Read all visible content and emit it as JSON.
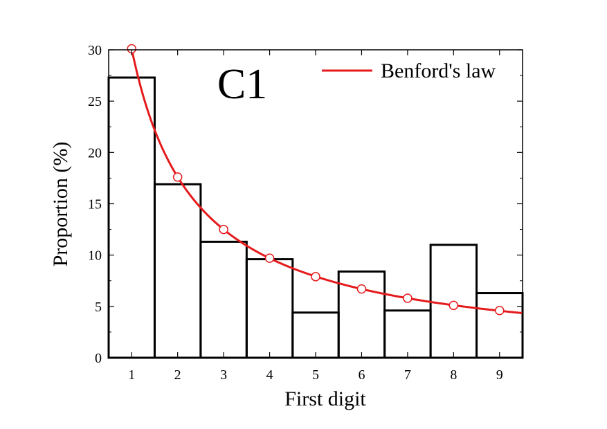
{
  "chart_data": {
    "type": "bar",
    "panel_label": "C1",
    "xlabel": "First digit",
    "ylabel": "Proportion (%)",
    "xlim": [
      0.5,
      9.5
    ],
    "ylim": [
      0,
      30
    ],
    "x_ticks": [
      "1",
      "2",
      "3",
      "4",
      "5",
      "6",
      "7",
      "8",
      "9"
    ],
    "y_ticks": [
      "0",
      "5",
      "10",
      "15",
      "20",
      "25",
      "30"
    ],
    "categories": [
      1,
      2,
      3,
      4,
      5,
      6,
      7,
      8,
      9
    ],
    "values": [
      27.3,
      16.9,
      11.3,
      9.6,
      4.4,
      8.4,
      4.6,
      11.0,
      6.3
    ],
    "benford": {
      "name": "Benford's law",
      "values": [
        30.1,
        17.6,
        12.5,
        9.7,
        7.9,
        6.7,
        5.8,
        5.1,
        4.6
      ]
    },
    "legend_position": "top-right",
    "grid": false,
    "colors": {
      "bars": "#000000",
      "curve": "#e41a1c",
      "markers_fill": "#ffffff"
    }
  }
}
